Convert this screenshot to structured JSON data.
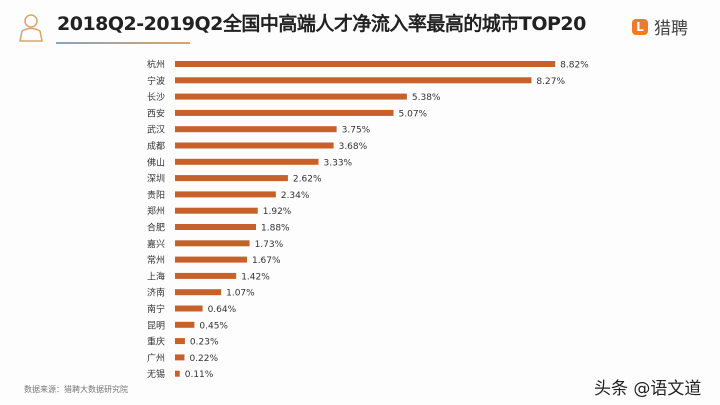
{
  "header": {
    "title": "2018Q2-2019Q2全国中高端人才净流入率最高的城市TOP20",
    "logo_text": "猎聘",
    "logo_mark": "L"
  },
  "footer": {
    "source": "数据来源：猎聘大数据研究院",
    "watermark": "头条 @语文道"
  },
  "chart_data": {
    "type": "bar",
    "orientation": "horizontal",
    "categories": [
      "杭州",
      "宁波",
      "长沙",
      "西安",
      "武汉",
      "成都",
      "佛山",
      "深圳",
      "贵阳",
      "郑州",
      "合肥",
      "嘉兴",
      "常州",
      "上海",
      "济南",
      "南宁",
      "昆明",
      "重庆",
      "广州",
      "无锡"
    ],
    "values": [
      8.82,
      8.27,
      5.38,
      5.07,
      3.75,
      3.68,
      3.33,
      2.62,
      2.34,
      1.92,
      1.88,
      1.73,
      1.67,
      1.42,
      1.07,
      0.64,
      0.45,
      0.23,
      0.22,
      0.11
    ],
    "labels": [
      "8.82%",
      "8.27%",
      "5.38%",
      "5.07%",
      "3.75%",
      "3.68%",
      "3.33%",
      "2.62%",
      "2.34%",
      "1.92%",
      "1.88%",
      "1.73%",
      "1.67%",
      "1.42%",
      "1.07%",
      "0.64%",
      "0.45%",
      "0.23%",
      "0.22%",
      "0.11%"
    ],
    "bar_color": "#c8602a",
    "grid": false,
    "legend": "none"
  }
}
